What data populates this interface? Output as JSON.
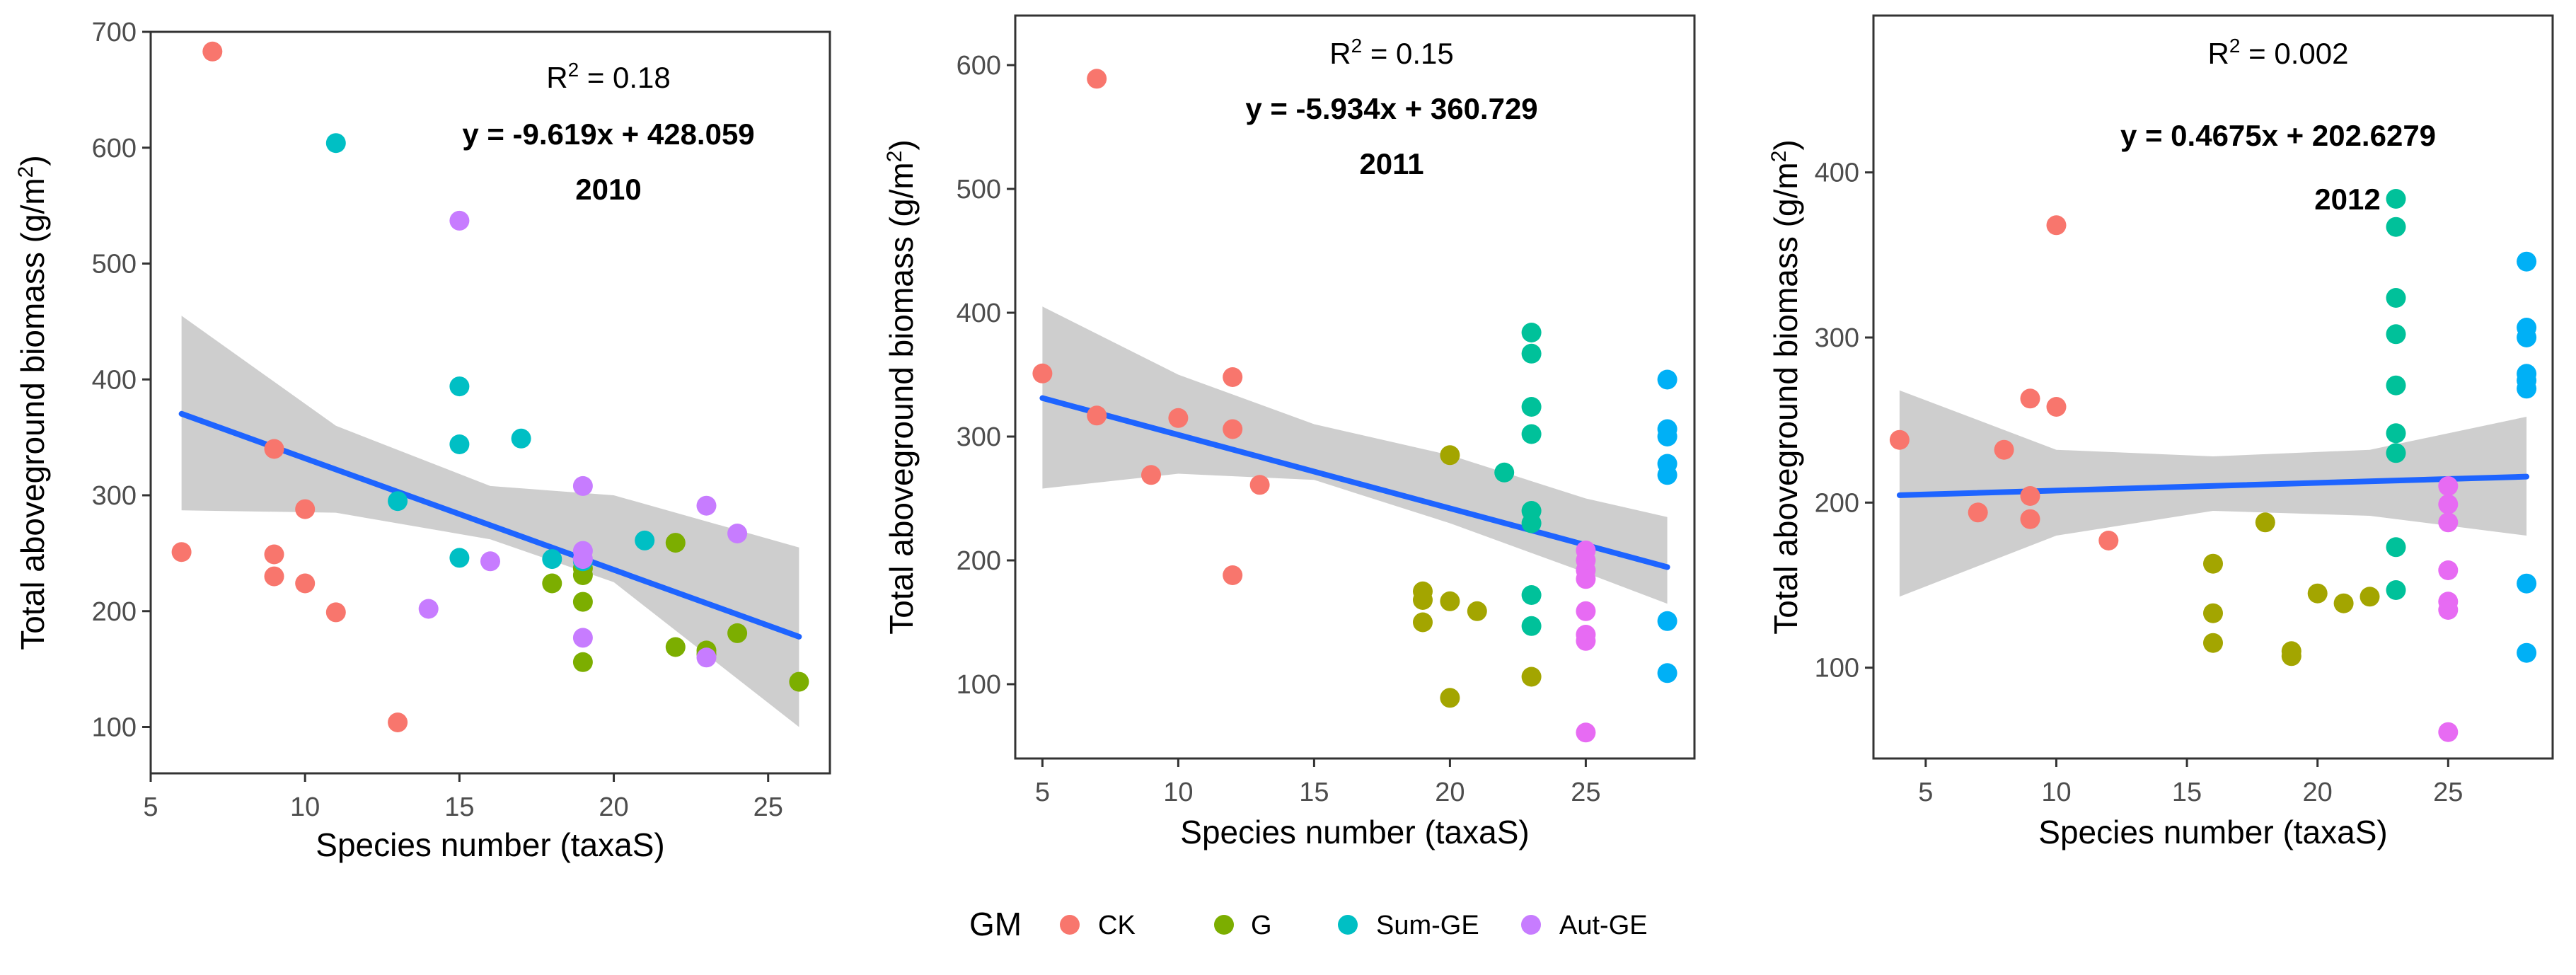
{
  "figure": {
    "legend": {
      "title": "GM",
      "items": [
        {
          "label": "CK",
          "color": "#F8766D"
        },
        {
          "label": "G",
          "color": "#7CAE00"
        },
        {
          "label": "Sum-GE",
          "color": "#00BFC4"
        },
        {
          "label": "Aut-GE",
          "color": "#C77CFF"
        }
      ]
    }
  },
  "colors": {
    "CK": "#F8766D",
    "G-2010": "#7CAE00",
    "G-2011": "#A3A500",
    "Sum-GE-2010": "#00BFC4",
    "Sum-GE-2011": "#00C19A",
    "Sum-GE-2011b": "#00B0F6",
    "Aut-GE-2010": "#C77CFF",
    "Aut-GE-2011": "#E76BF3",
    "fit_line": "#1E64FF",
    "ci_band": "#BEBEBE"
  },
  "chart_data": [
    {
      "type": "scatter",
      "title": "2010",
      "r2_prefix": "R",
      "r2_exp": "2",
      "r2_value": " = 0.18",
      "equation": "y = -9.619x + 428.059",
      "xlabel": "Species number (taxaS)",
      "ylabel": "Total aboveground biomass (g/m",
      "ylabel_exp": "2",
      "ylabel_end": ")",
      "xlim": [
        5,
        27
      ],
      "ylim": [
        60,
        700
      ],
      "xticks": [
        5,
        10,
        15,
        20,
        25
      ],
      "yticks": [
        100,
        200,
        300,
        400,
        500,
        600,
        700
      ],
      "fit": {
        "x": [
          6,
          26
        ],
        "intercept": 428.059,
        "slope": -9.619
      },
      "ci": {
        "x": [
          6,
          11,
          16,
          20,
          26
        ],
        "lower": [
          287,
          285,
          262,
          225,
          100
        ],
        "upper": [
          455,
          360,
          308,
          300,
          255
        ]
      },
      "series": [
        {
          "name": "CK",
          "color_key": "CK",
          "points": [
            [
              7,
              683
            ],
            [
              6,
              251
            ],
            [
              9,
              340
            ],
            [
              9,
              249
            ],
            [
              9,
              230
            ],
            [
              10,
              288
            ],
            [
              10,
              224
            ],
            [
              11,
              199
            ],
            [
              13,
              104
            ]
          ]
        },
        {
          "name": "G",
          "color_key": "G-2010",
          "points": [
            [
              18,
              224
            ],
            [
              19,
              231
            ],
            [
              19,
              237
            ],
            [
              19,
              208
            ],
            [
              19,
              156
            ],
            [
              22,
              259
            ],
            [
              22,
              169
            ],
            [
              23,
              166
            ],
            [
              23,
              163
            ],
            [
              24,
              181
            ],
            [
              26,
              139
            ]
          ]
        },
        {
          "name": "Sum-GE",
          "color_key": "Sum-GE-2010",
          "points": [
            [
              11,
              604
            ],
            [
              13,
              295
            ],
            [
              15,
              394
            ],
            [
              15,
              344
            ],
            [
              15,
              246
            ],
            [
              17,
              349
            ],
            [
              18,
              245
            ],
            [
              19,
              243
            ],
            [
              21,
              261
            ]
          ]
        },
        {
          "name": "Aut-GE",
          "color_key": "Aut-GE-2010",
          "points": [
            [
              15,
              537
            ],
            [
              14,
              202
            ],
            [
              16,
              243
            ],
            [
              19,
              308
            ],
            [
              19,
              252
            ],
            [
              19,
              245
            ],
            [
              19,
              177
            ],
            [
              23,
              291
            ],
            [
              24,
              267
            ],
            [
              23,
              160
            ]
          ]
        }
      ]
    },
    {
      "type": "scatter",
      "title": "2011",
      "r2_prefix": "R",
      "r2_exp": "2",
      "r2_value": " = 0.15",
      "equation": "y = -5.934x + 360.729",
      "xlabel": "Species number (taxaS)",
      "ylabel": "Total aboveground biomass (g/m",
      "ylabel_exp": "2",
      "ylabel_end": ")",
      "xlim": [
        4,
        29
      ],
      "ylim": [
        40,
        640
      ],
      "xticks": [
        5,
        10,
        15,
        20,
        25
      ],
      "yticks": [
        100,
        200,
        300,
        400,
        500,
        600
      ],
      "fit": {
        "x": [
          5,
          28
        ],
        "intercept": 360.729,
        "slope": -5.934
      },
      "ci": {
        "x": [
          5,
          10,
          15,
          20,
          25,
          28
        ],
        "lower": [
          258,
          270,
          265,
          230,
          190,
          165
        ],
        "upper": [
          405,
          350,
          310,
          285,
          250,
          235
        ]
      },
      "series": [
        {
          "name": "CK",
          "color_key": "CK",
          "points": [
            [
              7,
              589
            ],
            [
              5,
              351
            ],
            [
              7,
              317
            ],
            [
              9,
              269
            ],
            [
              10,
              315
            ],
            [
              12,
              348
            ],
            [
              12,
              306
            ],
            [
              12,
              188
            ],
            [
              13,
              261
            ]
          ]
        },
        {
          "name": "G",
          "color_key": "G-2011",
          "points": [
            [
              19,
              175
            ],
            [
              19,
              168
            ],
            [
              19,
              150
            ],
            [
              20,
              285
            ],
            [
              20,
              167
            ],
            [
              20,
              89
            ],
            [
              21,
              159
            ],
            [
              23,
              106
            ]
          ]
        },
        {
          "name": "Sum-GE",
          "color_key": "Sum-GE-2011",
          "points": [
            [
              22,
              271
            ],
            [
              23,
              384
            ],
            [
              23,
              367
            ],
            [
              23,
              324
            ],
            [
              23,
              302
            ],
            [
              23,
              240
            ],
            [
              23,
              230
            ],
            [
              23,
              172
            ],
            [
              23,
              147
            ]
          ]
        },
        {
          "name": "Sum-GE",
          "color_key": "Sum-GE-2011b",
          "points": [
            [
              28,
              346
            ],
            [
              28,
              306
            ],
            [
              28,
              300
            ],
            [
              28,
              278
            ],
            [
              28,
              269
            ],
            [
              28,
              151
            ],
            [
              28,
              109
            ]
          ]
        },
        {
          "name": "Aut-GE",
          "color_key": "Aut-GE-2011",
          "points": [
            [
              25,
              208
            ],
            [
              25,
              200
            ],
            [
              25,
              192
            ],
            [
              25,
              185
            ],
            [
              25,
              159
            ],
            [
              25,
              140
            ],
            [
              25,
              135
            ],
            [
              25,
              61
            ]
          ]
        }
      ]
    },
    {
      "type": "scatter",
      "title": "2012",
      "r2_prefix": "R",
      "r2_exp": "2",
      "r2_value": " = 0.002",
      "equation": "y = 0.4675x + 202.6279",
      "xlabel": "Species number (taxaS)",
      "ylabel": "Total aboveground biomass (g/m",
      "ylabel_exp": "2",
      "ylabel_end": ")",
      "xlim": [
        3,
        29
      ],
      "ylim": [
        45,
        495
      ],
      "xticks": [
        5,
        10,
        15,
        20,
        25
      ],
      "yticks": [
        100,
        200,
        300,
        400
      ],
      "fit": {
        "x": [
          4,
          28
        ],
        "intercept": 202.6279,
        "slope": 0.4675
      },
      "ci": {
        "x": [
          4,
          10,
          16,
          22,
          28
        ],
        "lower": [
          143,
          180,
          195,
          192,
          180
        ],
        "upper": [
          268,
          232,
          228,
          232,
          252
        ]
      },
      "series": [
        {
          "name": "CK",
          "color_key": "CK",
          "points": [
            [
              4,
              238
            ],
            [
              7,
              194
            ],
            [
              8,
              232
            ],
            [
              9,
              263
            ],
            [
              9,
              204
            ],
            [
              9,
              190
            ],
            [
              10,
              368
            ],
            [
              10,
              258
            ],
            [
              12,
              177
            ]
          ]
        },
        {
          "name": "G",
          "color_key": "G-2011",
          "points": [
            [
              16,
              163
            ],
            [
              16,
              133
            ],
            [
              16,
              115
            ],
            [
              18,
              188
            ],
            [
              19,
              110
            ],
            [
              19,
              107
            ],
            [
              20,
              145
            ],
            [
              21,
              139
            ],
            [
              22,
              143
            ]
          ]
        },
        {
          "name": "Sum-GE",
          "color_key": "Sum-GE-2011",
          "points": [
            [
              23,
              384
            ],
            [
              23,
              367
            ],
            [
              23,
              324
            ],
            [
              23,
              302
            ],
            [
              23,
              271
            ],
            [
              23,
              242
            ],
            [
              23,
              230
            ],
            [
              23,
              173
            ],
            [
              23,
              147
            ]
          ]
        },
        {
          "name": "Sum-GE",
          "color_key": "Sum-GE-2011b",
          "points": [
            [
              28,
              346
            ],
            [
              28,
              306
            ],
            [
              28,
              300
            ],
            [
              28,
              278
            ],
            [
              28,
              274
            ],
            [
              28,
              269
            ],
            [
              28,
              151
            ],
            [
              28,
              109
            ]
          ]
        },
        {
          "name": "Aut-GE",
          "color_key": "Aut-GE-2011",
          "points": [
            [
              25,
              210
            ],
            [
              25,
              199
            ],
            [
              25,
              188
            ],
            [
              25,
              159
            ],
            [
              25,
              140
            ],
            [
              25,
              135
            ],
            [
              25,
              61
            ]
          ]
        }
      ]
    }
  ]
}
